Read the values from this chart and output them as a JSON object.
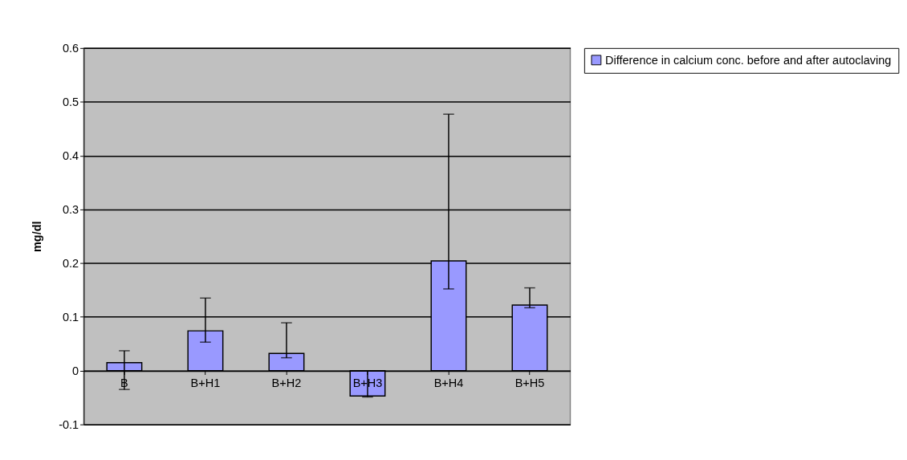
{
  "chart_data": {
    "type": "bar",
    "ylabel": "mg/dl",
    "categories": [
      "B",
      "B+H1",
      "B+H2",
      "B+H3",
      "B+H4",
      "B+H5"
    ],
    "series": [
      {
        "name": "Difference in calcium conc. before and after autoclaving",
        "color": "#9999ff",
        "values": [
          0.015,
          0.074,
          0.032,
          -0.047,
          0.204,
          0.122
        ],
        "errors": [
          [
            -0.035,
            0.037
          ],
          [
            0.053,
            0.135
          ],
          [
            0.024,
            0.089
          ],
          [
            -0.049,
            0.0
          ],
          [
            0.152,
            0.477
          ],
          [
            0.117,
            0.154
          ]
        ]
      }
    ],
    "ylim": [
      -0.1,
      0.6
    ],
    "yticks": [
      -0.1,
      0,
      0.1,
      0.2,
      0.3,
      0.4,
      0.5,
      0.6
    ],
    "grid": "y",
    "legend": "right"
  }
}
